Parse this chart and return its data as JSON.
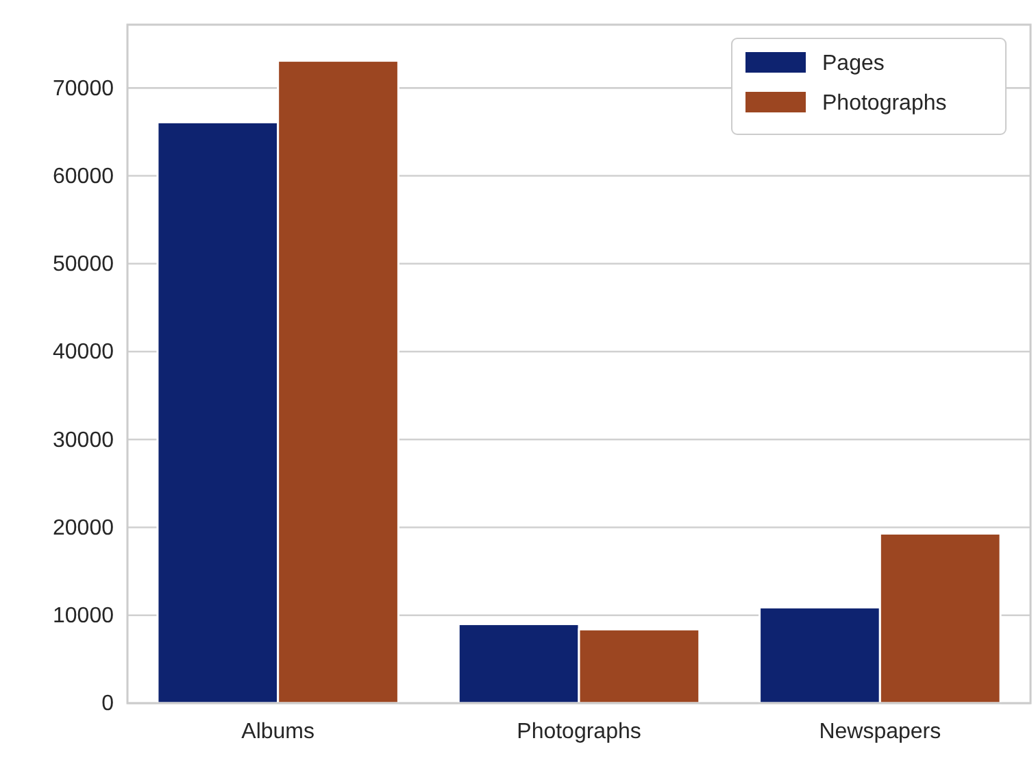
{
  "chart_data": {
    "type": "bar",
    "categories": [
      "Albums",
      "Photographs",
      "Newspapers"
    ],
    "series": [
      {
        "name": "Pages",
        "color": "#0e2370",
        "values": [
          66100,
          9000,
          10900
        ]
      },
      {
        "name": "Photographs",
        "color": "#9c4621",
        "values": [
          73100,
          8400,
          19300
        ]
      }
    ],
    "ylim": [
      0,
      77200
    ],
    "yticks": [
      0,
      10000,
      20000,
      30000,
      40000,
      50000,
      60000,
      70000
    ],
    "grid": "y",
    "legend": "top right"
  }
}
